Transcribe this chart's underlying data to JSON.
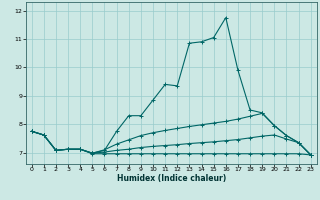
{
  "xlabel": "Humidex (Indice chaleur)",
  "bg_color": "#cce8e4",
  "line_color": "#006666",
  "grid_color": "#99cccc",
  "xlim": [
    -0.5,
    23.5
  ],
  "ylim": [
    6.6,
    12.3
  ],
  "xticks": [
    0,
    1,
    2,
    3,
    4,
    5,
    6,
    7,
    8,
    9,
    10,
    11,
    12,
    13,
    14,
    15,
    16,
    17,
    18,
    19,
    20,
    21,
    22,
    23
  ],
  "yticks": [
    7,
    8,
    9,
    10,
    11,
    12
  ],
  "line1_x": [
    0,
    1,
    2,
    3,
    4,
    5,
    6,
    7,
    8,
    9,
    10,
    11,
    12,
    13,
    14,
    15,
    16,
    17,
    18,
    19,
    20,
    21,
    22,
    23
  ],
  "line1_y": [
    7.75,
    7.62,
    7.08,
    7.12,
    7.12,
    6.98,
    7.08,
    7.75,
    8.3,
    8.3,
    8.85,
    9.4,
    9.35,
    10.85,
    10.9,
    11.05,
    11.75,
    9.9,
    8.5,
    8.4,
    7.95,
    7.6,
    7.35,
    6.92
  ],
  "line2_x": [
    0,
    1,
    2,
    3,
    4,
    5,
    6,
    7,
    8,
    9,
    10,
    11,
    12,
    13,
    14,
    15,
    16,
    17,
    18,
    19,
    20,
    21,
    22,
    23
  ],
  "line2_y": [
    7.75,
    7.62,
    7.08,
    7.12,
    7.12,
    6.98,
    7.1,
    7.3,
    7.45,
    7.6,
    7.7,
    7.78,
    7.85,
    7.92,
    7.98,
    8.04,
    8.1,
    8.18,
    8.28,
    8.38,
    7.95,
    7.6,
    7.35,
    6.92
  ],
  "line3_x": [
    0,
    1,
    2,
    3,
    4,
    5,
    6,
    7,
    8,
    9,
    10,
    11,
    12,
    13,
    14,
    15,
    16,
    17,
    18,
    19,
    20,
    21,
    22,
    23
  ],
  "line3_y": [
    7.75,
    7.62,
    7.08,
    7.12,
    7.12,
    6.98,
    7.02,
    7.08,
    7.12,
    7.18,
    7.22,
    7.25,
    7.28,
    7.32,
    7.35,
    7.38,
    7.42,
    7.46,
    7.52,
    7.58,
    7.62,
    7.48,
    7.35,
    6.92
  ],
  "line4_x": [
    0,
    1,
    2,
    3,
    4,
    5,
    6,
    7,
    8,
    9,
    10,
    11,
    12,
    13,
    14,
    15,
    16,
    17,
    18,
    19,
    20,
    21,
    22,
    23
  ],
  "line4_y": [
    7.75,
    7.62,
    7.08,
    7.12,
    7.12,
    6.96,
    6.96,
    6.96,
    6.96,
    6.96,
    6.96,
    6.96,
    6.96,
    6.96,
    6.96,
    6.96,
    6.96,
    6.96,
    6.96,
    6.96,
    6.96,
    6.96,
    6.96,
    6.92
  ]
}
